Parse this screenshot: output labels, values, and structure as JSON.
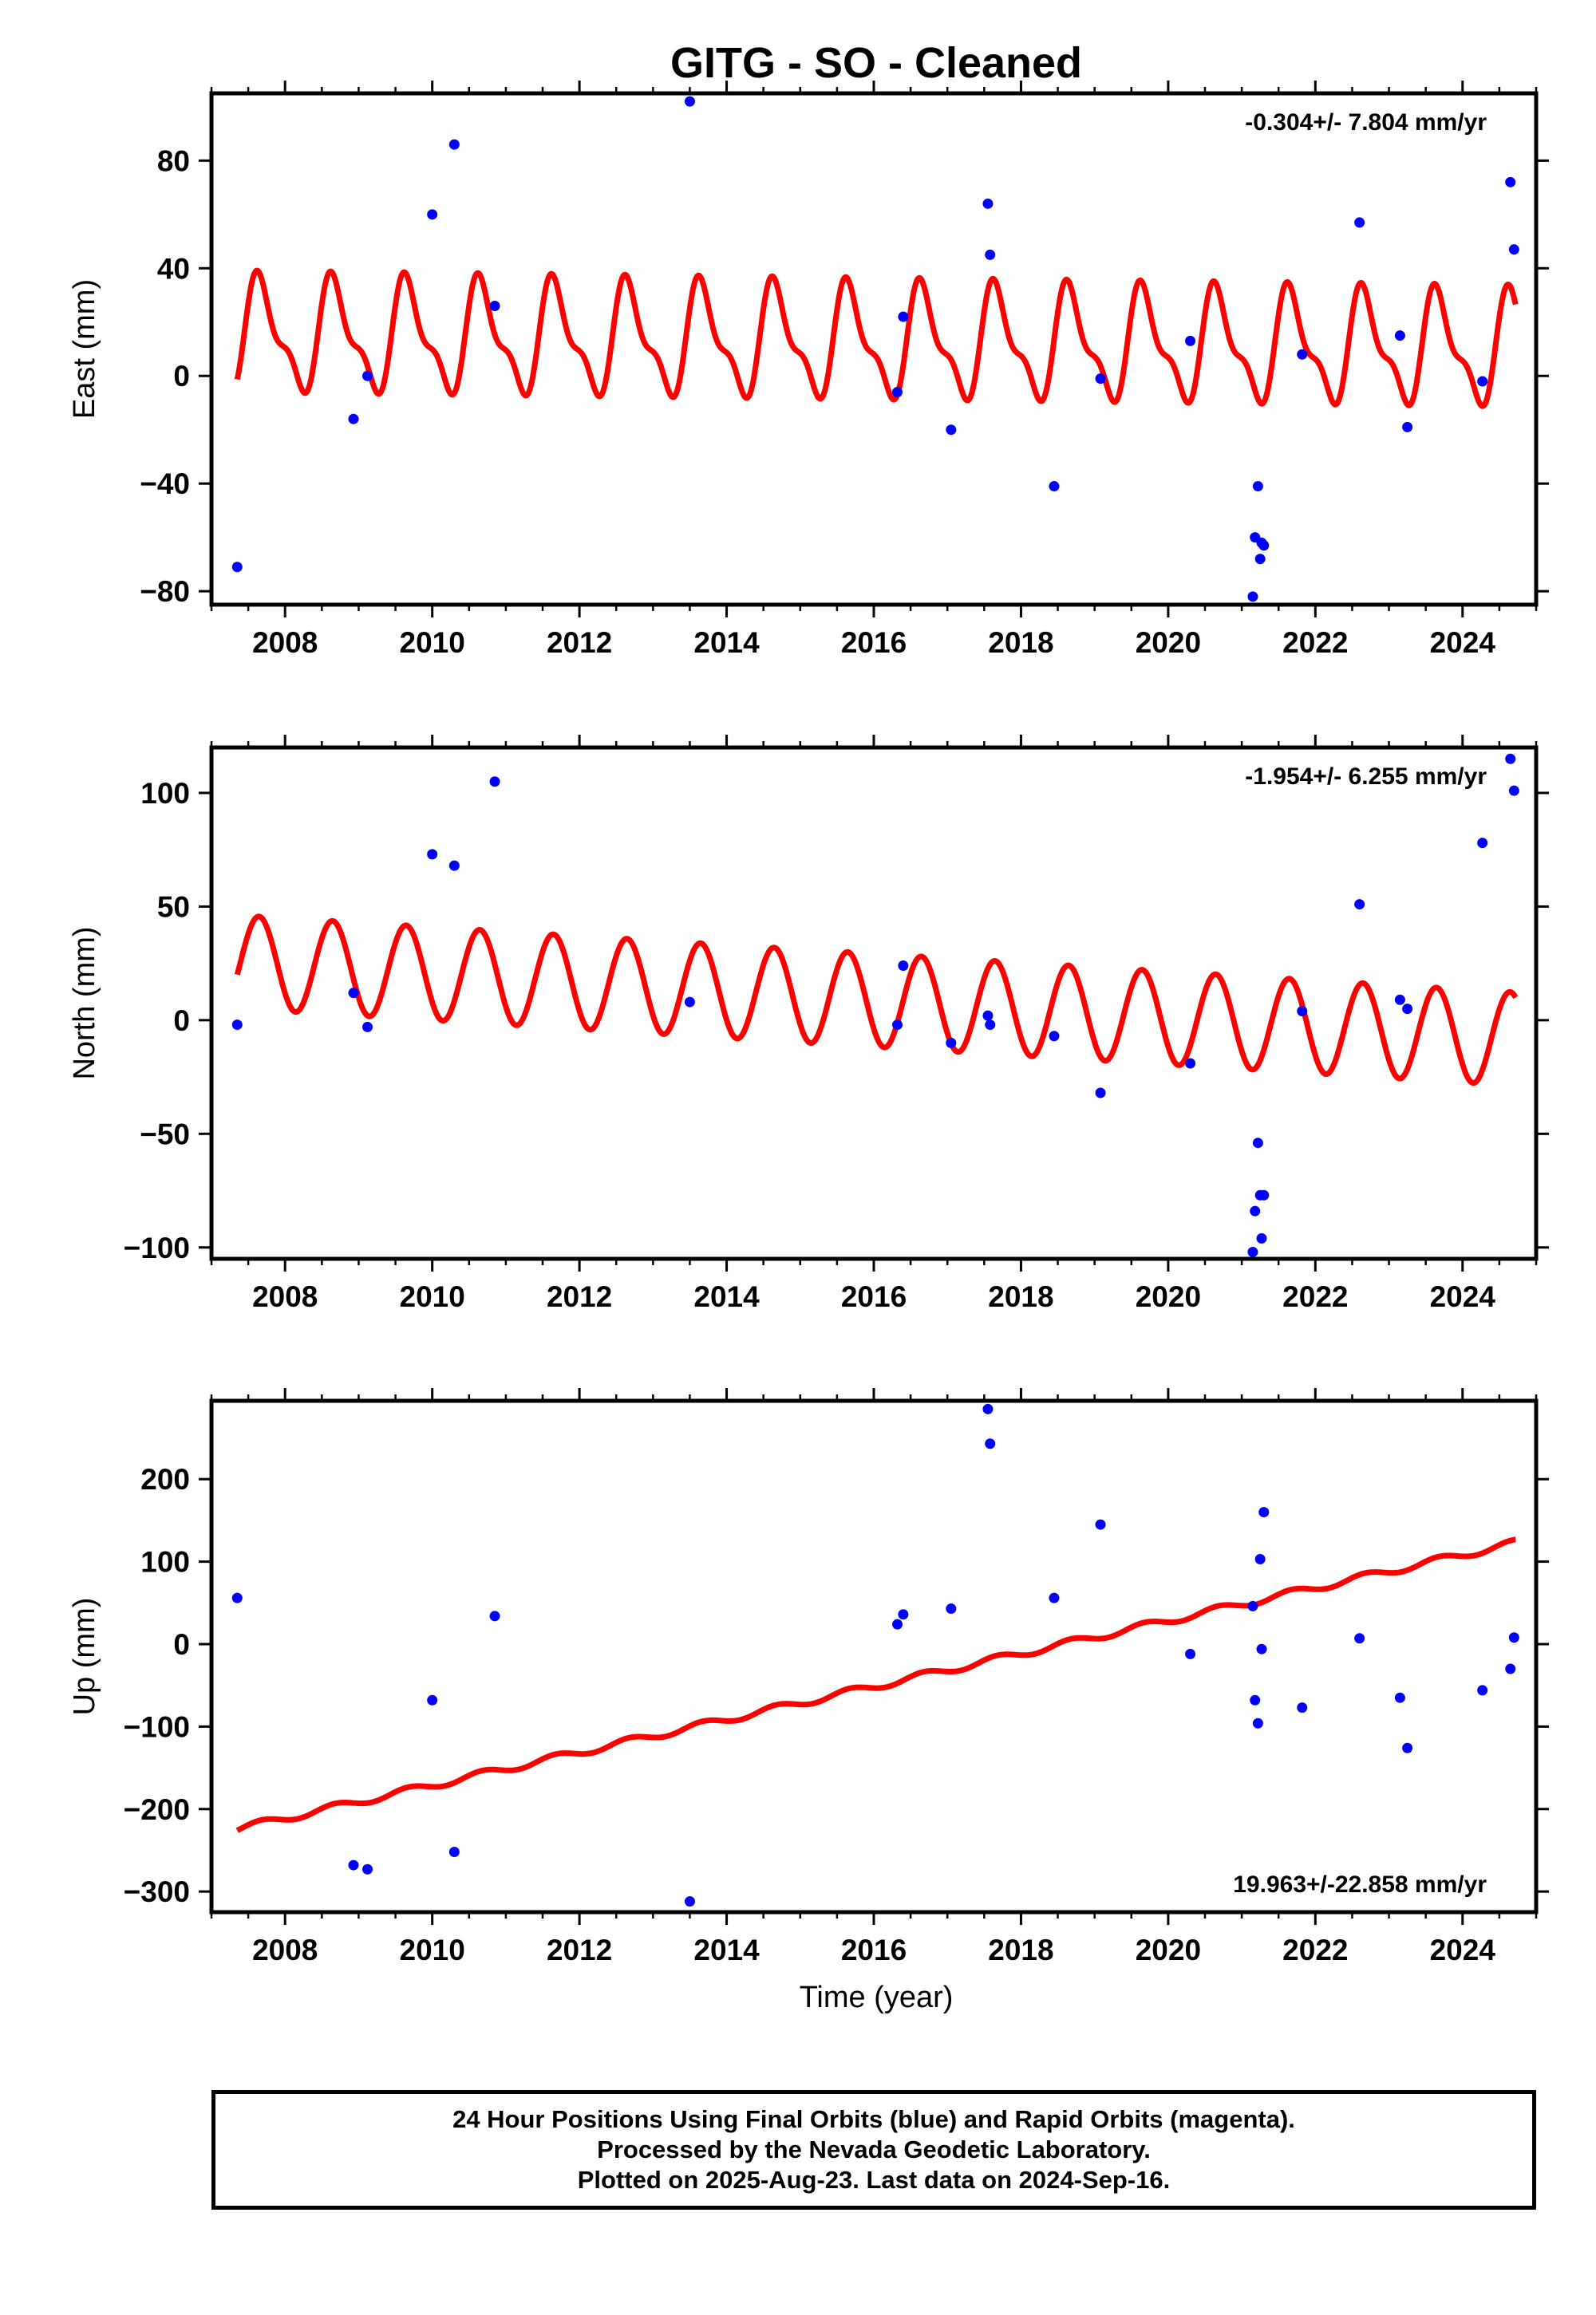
{
  "title": "GITG  - SO - Cleaned",
  "xlabel": "Time (year)",
  "colors": {
    "fit_line": "#ff0000",
    "points": "#0000ff",
    "frame": "#000000"
  },
  "footer": {
    "line1": "24 Hour Positions Using Final Orbits (blue) and Rapid Orbits (magenta).",
    "line2": "Processed by the Nevada Geodetic Laboratory.",
    "line3": "Plotted on 2025-Aug-23. Last data on 2024-Sep-16."
  },
  "chart_data": [
    {
      "type": "scatter",
      "name": "east",
      "ylabel": "East (mm)",
      "rate_label": "-0.304+/- 7.804 mm/yr",
      "rate_position": "top-right",
      "xlim": [
        2007.0,
        2025.0
      ],
      "ylim": [
        -85,
        105
      ],
      "x_ticks": [
        2008,
        2010,
        2012,
        2014,
        2016,
        2018,
        2020,
        2022,
        2024
      ],
      "y_ticks": [
        -80,
        -40,
        0,
        40,
        80
      ],
      "y_tick_labels": [
        "−80",
        "−40",
        "0",
        "40",
        "80"
      ],
      "model": {
        "offset": 15.0,
        "rate": -0.304,
        "t0": 2007.3,
        "annual_cos": -13.5,
        "annual_sin": 13.0,
        "semi_cos": -7.0,
        "semi_sin": -3.0,
        "t_start": 2007.35,
        "t_end": 2024.72
      },
      "points": {
        "x": [
          2007.35,
          2008.93,
          2009.12,
          2010.0,
          2010.3,
          2010.85,
          2013.5,
          2016.32,
          2016.4,
          2017.05,
          2017.55,
          2017.58,
          2018.45,
          2019.08,
          2020.3,
          2021.15,
          2021.18,
          2021.22,
          2021.25,
          2021.27,
          2021.3,
          2021.82,
          2022.6,
          2023.15,
          2023.25,
          2024.27,
          2024.65,
          2024.7
        ],
        "y": [
          -71,
          -16,
          0,
          60,
          86,
          26,
          102,
          -6,
          22,
          -20,
          64,
          45,
          -41,
          -1,
          13,
          -82,
          -60,
          -41,
          -68,
          -62,
          -63,
          8,
          57,
          15,
          -19,
          -2,
          72,
          47
        ]
      }
    },
    {
      "type": "scatter",
      "name": "north",
      "ylabel": "North (mm)",
      "rate_label": "-1.954+/- 6.255 mm/yr",
      "rate_position": "top-right",
      "xlim": [
        2007.0,
        2025.0
      ],
      "ylim": [
        -105,
        120
      ],
      "x_ticks": [
        2008,
        2010,
        2012,
        2014,
        2016,
        2018,
        2020,
        2022,
        2024
      ],
      "y_ticks": [
        -100,
        -50,
        0,
        50,
        100
      ],
      "y_tick_labels": [
        "−100",
        "−50",
        "0",
        "50",
        "100"
      ],
      "model": {
        "offset": 25.8,
        "rate": -1.954,
        "t0": 2007.3,
        "annual_cos": -11.5,
        "annual_sin": 17.0,
        "semi_cos": 0,
        "semi_sin": 0,
        "t_start": 2007.35,
        "t_end": 2024.72
      },
      "points": {
        "x": [
          2007.35,
          2008.93,
          2009.12,
          2010.0,
          2010.3,
          2010.85,
          2013.5,
          2016.32,
          2016.4,
          2017.05,
          2017.55,
          2017.58,
          2018.45,
          2019.08,
          2020.3,
          2021.15,
          2021.18,
          2021.22,
          2021.25,
          2021.27,
          2021.3,
          2021.82,
          2022.6,
          2023.15,
          2023.25,
          2024.27,
          2024.65,
          2024.7
        ],
        "y": [
          -2,
          12,
          -3,
          73,
          68,
          105,
          8,
          -2,
          24,
          -10,
          2,
          -2,
          -7,
          -32,
          -19,
          -102,
          -84,
          -54,
          -77,
          -96,
          -77,
          4,
          51,
          9,
          5,
          78,
          115,
          101
        ]
      }
    },
    {
      "type": "scatter",
      "name": "up",
      "ylabel": "Up (mm)",
      "rate_label": "19.963+/-22.858 mm/yr",
      "rate_position": "bottom-right",
      "xlim": [
        2007.0,
        2025.0
      ],
      "ylim": [
        -325,
        295
      ],
      "x_ticks": [
        2008,
        2010,
        2012,
        2014,
        2016,
        2018,
        2020,
        2022,
        2024
      ],
      "y_ticks": [
        -300,
        -200,
        -100,
        0,
        100,
        200
      ],
      "y_tick_labels": [
        "−300",
        "−200",
        "−100",
        "0",
        "100",
        "200"
      ],
      "model": {
        "offset": -225.0,
        "rate": 19.963,
        "t0": 2007.3,
        "annual_cos": -3.0,
        "annual_sin": 3.0,
        "semi_cos": 0,
        "semi_sin": 0,
        "t_start": 2007.35,
        "t_end": 2024.72
      },
      "points": {
        "x": [
          2007.35,
          2008.93,
          2009.12,
          2010.0,
          2010.3,
          2010.85,
          2013.5,
          2016.32,
          2016.4,
          2017.05,
          2017.55,
          2017.58,
          2018.45,
          2019.08,
          2020.3,
          2021.15,
          2021.18,
          2021.22,
          2021.25,
          2021.27,
          2021.3,
          2021.82,
          2022.6,
          2023.15,
          2023.25,
          2024.27,
          2024.65,
          2024.7
        ],
        "y": [
          56,
          -268,
          -273,
          -68,
          -252,
          34,
          -312,
          24,
          36,
          43,
          285,
          243,
          56,
          145,
          -12,
          46,
          -68,
          -96,
          103,
          -6,
          160,
          -77,
          7,
          -65,
          -126,
          -56,
          -30,
          8
        ]
      }
    }
  ]
}
